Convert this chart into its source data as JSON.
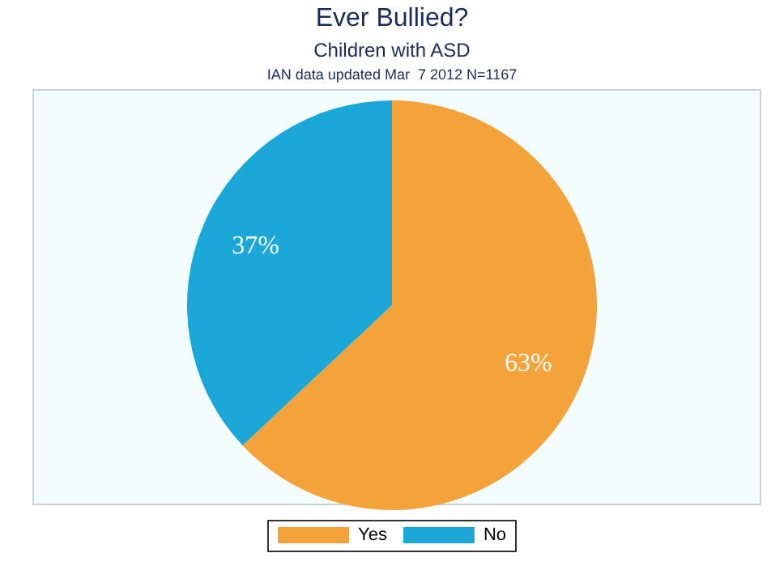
{
  "chart_data": {
    "type": "pie",
    "title": "Ever Bullied?",
    "subtitle": "Children with ASD",
    "annotations": [
      "IAN data updated Mar  7 2012 N=1167"
    ],
    "categories": [
      "Yes",
      "No"
    ],
    "values": [
      63,
      37
    ],
    "colors": [
      "#f4a33a",
      "#1ca7d9"
    ],
    "value_labels": [
      "63%",
      "37%"
    ],
    "legend": "bottom"
  }
}
